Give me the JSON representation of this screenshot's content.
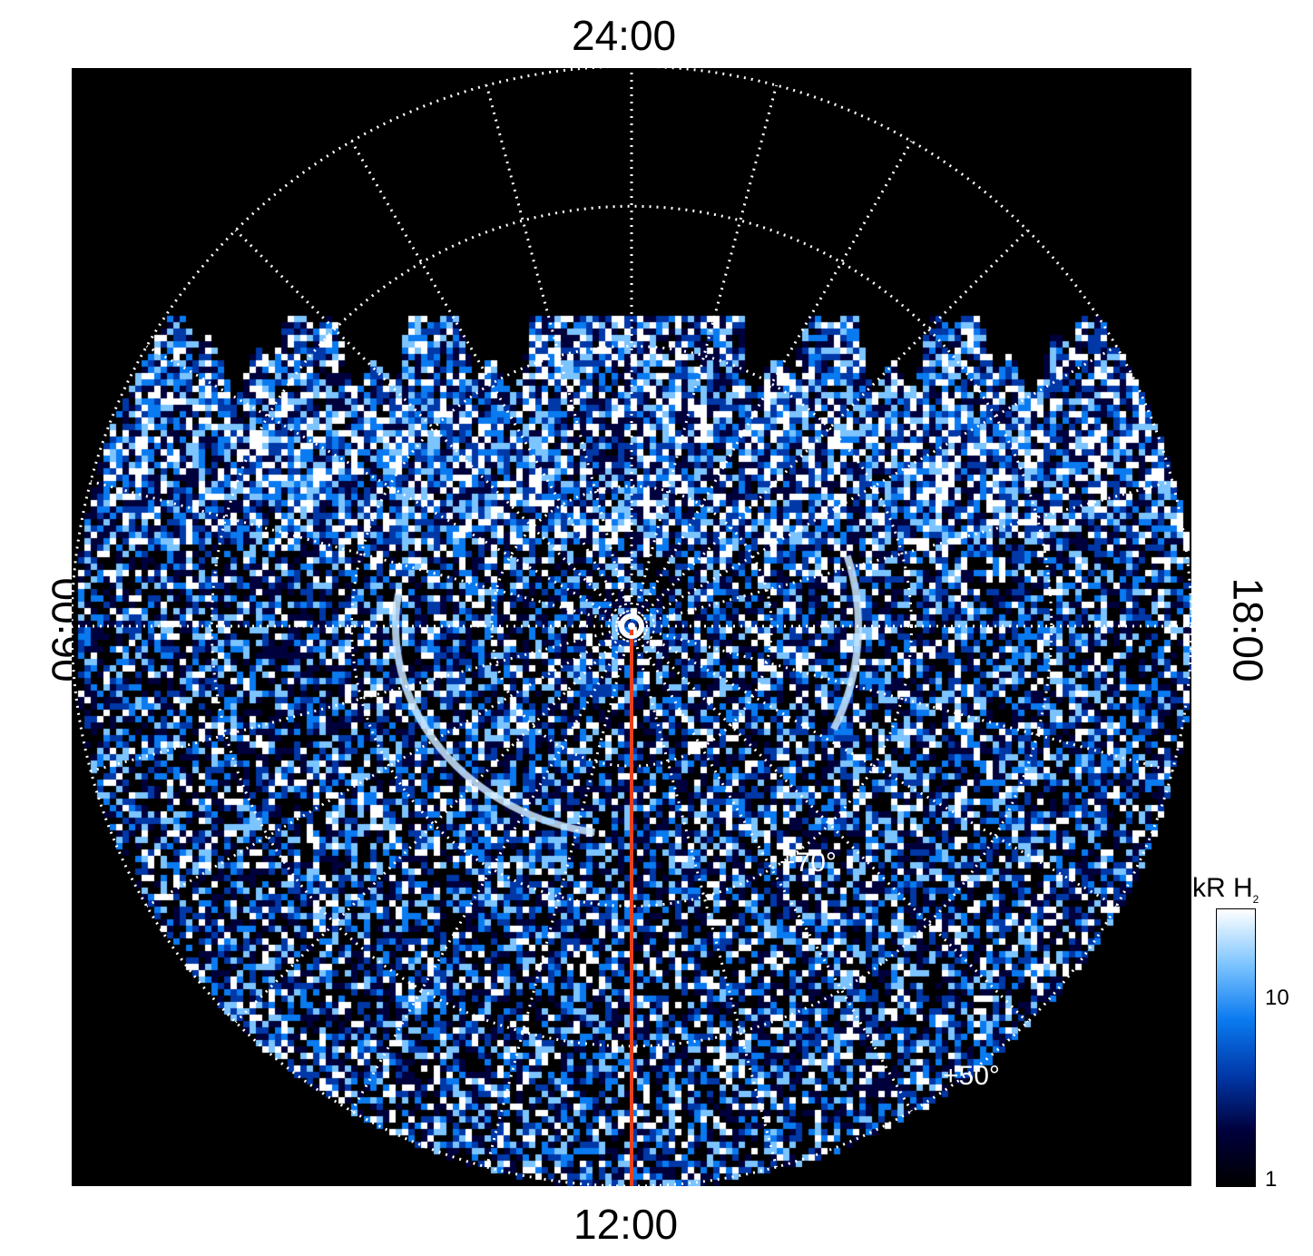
{
  "labels": {
    "top": "24:00",
    "bottom": "12:00",
    "left": "06:00",
    "right": "18:00",
    "lat70": "+70°",
    "lat50": "+50°"
  },
  "colorbar": {
    "title": "kR H",
    "title_sub": "2",
    "tick_labels": [
      "10",
      "1"
    ],
    "range": [
      1,
      25
    ],
    "scale": "log",
    "colors": [
      "#000000",
      "#00003c",
      "#0038a8",
      "#0a7af0",
      "#7cc4ff",
      "#ffffff"
    ]
  },
  "chart_data": {
    "type": "heatmap",
    "projection": "polar",
    "local_time_labels": [
      "24:00",
      "06:00",
      "12:00",
      "18:00"
    ],
    "latitude_labels": [
      "+70°",
      "+50°"
    ],
    "meridian_marker_lt": "12:00",
    "marker_color": "#e8401c",
    "grid": true,
    "grid_color": "#ffffff",
    "colorbar_label": "kR H2",
    "colorbar_scale": "log",
    "colorbar_ticks": [
      1,
      10
    ]
  }
}
